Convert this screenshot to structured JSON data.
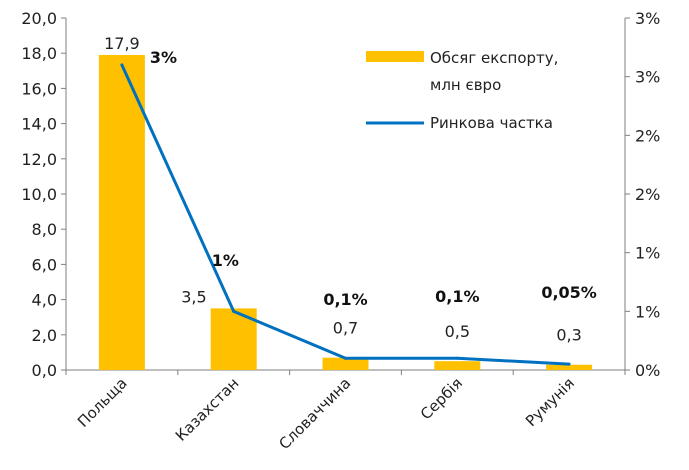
{
  "chart_data": {
    "type": "bar",
    "categories": [
      "Польща",
      "Казахстан",
      "Словаччина",
      "Сербія",
      "Румунія"
    ],
    "series": [
      {
        "name": "Обсяг експорту, млн євро",
        "type": "bar",
        "axis": "left",
        "color": "#FFC000",
        "values": [
          17.9,
          3.5,
          0.7,
          0.5,
          0.3
        ],
        "labels": [
          "17,9",
          "3,5",
          "0,7",
          "0,5",
          "0,3"
        ]
      },
      {
        "name": "Ринкова частка",
        "type": "line",
        "axis": "right",
        "color": "#0070C0",
        "values": [
          2.6,
          0.5,
          0.1,
          0.1,
          0.05
        ],
        "labels": [
          "3%",
          "1%",
          "0,1%",
          "0,1%",
          "0,05%"
        ]
      }
    ],
    "legend_lines": [
      [
        "Обсяг експорту,",
        "млн євро"
      ],
      [
        "Ринкова частка"
      ]
    ],
    "y_left": {
      "min": 0,
      "max": 20,
      "ticks": [
        "0,0",
        "2,0",
        "4,0",
        "6,0",
        "8,0",
        "10,0",
        "12,0",
        "14,0",
        "16,0",
        "18,0",
        "20,0"
      ]
    },
    "y_right": {
      "min": 0,
      "max": 3,
      "ticks": [
        "0%",
        "1%",
        "1%",
        "2%",
        "2%",
        "3%",
        "3%"
      ]
    },
    "grid": false,
    "legend_position": "top-right"
  }
}
